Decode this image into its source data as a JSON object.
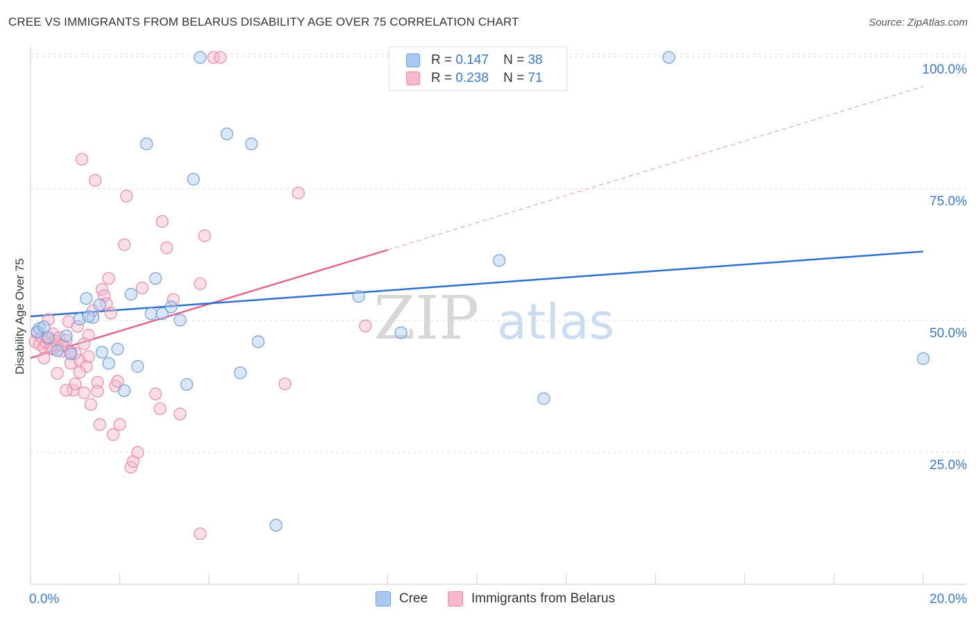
{
  "title": "CREE VS IMMIGRANTS FROM BELARUS DISABILITY AGE OVER 75 CORRELATION CHART",
  "source": "Source: ZipAtlas.com",
  "watermark": {
    "zip": "ZIP",
    "atlas": "atlas"
  },
  "legend": {
    "r_label": "R =",
    "n_label": "N =",
    "rows": [
      {
        "r": "0.147",
        "n": "38"
      },
      {
        "r": "0.238",
        "n": "71"
      }
    ]
  },
  "colors": {
    "blue_fill": "#aac9f0",
    "blue_stroke": "#6f9fd8",
    "blue_line": "#2f6fca",
    "pink_fill": "#f6b8cb",
    "pink_stroke": "#e88aa9",
    "pink_line": "#e06690",
    "tick_label": "#3a78c9",
    "grid": "#dddddd"
  },
  "chart_data": {
    "type": "scatter",
    "title": "CREE VS IMMIGRANTS FROM BELARUS DISABILITY AGE OVER 75 CORRELATION CHART",
    "ylabel": "Disability Age Over 75",
    "xlabel": "",
    "xlim": [
      0,
      20
    ],
    "ylim": [
      0,
      102
    ],
    "x_tick_labels": [
      "0.0%",
      "20.0%"
    ],
    "y_ticks": [
      25,
      50,
      75,
      100
    ],
    "y_tick_labels": [
      "25.0%",
      "50.0%",
      "75.0%",
      "100.0%"
    ],
    "grid": true,
    "legend_position": "top-center",
    "series": [
      {
        "name": "Cree",
        "points": [
          [
            0.2,
            48.5
          ],
          [
            0.4,
            46.8
          ],
          [
            0.6,
            44.3
          ],
          [
            0.9,
            43.7
          ],
          [
            1.1,
            50.3
          ],
          [
            1.25,
            54.2
          ],
          [
            1.4,
            50.6
          ],
          [
            1.55,
            53.0
          ],
          [
            1.6,
            44.0
          ],
          [
            1.75,
            41.9
          ],
          [
            1.95,
            44.6
          ],
          [
            2.1,
            36.7
          ],
          [
            2.25,
            55.0
          ],
          [
            2.4,
            41.3
          ],
          [
            2.6,
            83.5
          ],
          [
            2.7,
            51.3
          ],
          [
            2.8,
            58.0
          ],
          [
            2.95,
            51.3
          ],
          [
            3.15,
            52.6
          ],
          [
            3.35,
            50.1
          ],
          [
            3.5,
            37.9
          ],
          [
            3.65,
            76.8
          ],
          [
            3.8,
            99.9
          ],
          [
            4.4,
            85.4
          ],
          [
            4.7,
            40.1
          ],
          [
            4.95,
            83.5
          ],
          [
            5.1,
            46.0
          ],
          [
            5.5,
            11.2
          ],
          [
            7.35,
            54.6
          ],
          [
            8.3,
            47.7
          ],
          [
            10.5,
            61.4
          ],
          [
            11.5,
            35.2
          ],
          [
            14.3,
            99.9
          ],
          [
            20.0,
            42.8
          ],
          [
            0.15,
            47.9
          ],
          [
            0.3,
            48.8
          ],
          [
            0.8,
            47.1
          ],
          [
            1.3,
            50.8
          ]
        ],
        "trend": {
          "x": [
            0,
            20
          ],
          "y": [
            50.8,
            63.1
          ]
        }
      },
      {
        "name": "Immigrants from Belarus",
        "points": [
          [
            0.1,
            46.0
          ],
          [
            0.15,
            47.6
          ],
          [
            0.2,
            45.5
          ],
          [
            0.25,
            46.9
          ],
          [
            0.3,
            44.9
          ],
          [
            0.35,
            45.9
          ],
          [
            0.4,
            46.5
          ],
          [
            0.45,
            44.7
          ],
          [
            0.5,
            47.5
          ],
          [
            0.55,
            46.1
          ],
          [
            0.6,
            45.4
          ],
          [
            0.65,
            46.8
          ],
          [
            0.7,
            44.2
          ],
          [
            0.75,
            45.2
          ],
          [
            0.8,
            46.3
          ],
          [
            0.85,
            49.8
          ],
          [
            0.9,
            41.9
          ],
          [
            0.95,
            36.8
          ],
          [
            1.0,
            38.0
          ],
          [
            1.05,
            48.9
          ],
          [
            1.1,
            42.5
          ],
          [
            1.15,
            80.6
          ],
          [
            1.2,
            36.3
          ],
          [
            1.25,
            41.3
          ],
          [
            1.3,
            47.2
          ],
          [
            1.35,
            34.1
          ],
          [
            1.4,
            51.9
          ],
          [
            1.45,
            76.6
          ],
          [
            1.5,
            38.3
          ],
          [
            1.55,
            30.3
          ],
          [
            1.6,
            55.9
          ],
          [
            1.65,
            54.7
          ],
          [
            1.7,
            53.2
          ],
          [
            1.75,
            58.0
          ],
          [
            1.8,
            51.4
          ],
          [
            1.85,
            28.4
          ],
          [
            1.9,
            37.6
          ],
          [
            1.95,
            38.5
          ],
          [
            2.0,
            30.3
          ],
          [
            2.1,
            64.4
          ],
          [
            2.15,
            73.6
          ],
          [
            2.25,
            22.2
          ],
          [
            2.3,
            23.3
          ],
          [
            2.4,
            25.0
          ],
          [
            2.5,
            56.2
          ],
          [
            2.8,
            36.1
          ],
          [
            2.9,
            33.3
          ],
          [
            2.95,
            68.8
          ],
          [
            3.05,
            63.8
          ],
          [
            3.2,
            54.0
          ],
          [
            3.35,
            32.3
          ],
          [
            3.8,
            57.0
          ],
          [
            3.9,
            66.1
          ],
          [
            3.8,
            9.6
          ],
          [
            4.1,
            99.9
          ],
          [
            4.25,
            99.9
          ],
          [
            6.0,
            74.2
          ],
          [
            5.7,
            38.0
          ],
          [
            7.5,
            49.0
          ],
          [
            0.6,
            40.0
          ],
          [
            0.8,
            36.8
          ],
          [
            1.0,
            43.8
          ],
          [
            0.4,
            50.2
          ],
          [
            0.3,
            42.9
          ],
          [
            0.5,
            44.6
          ],
          [
            1.2,
            45.6
          ],
          [
            0.9,
            44.0
          ],
          [
            1.1,
            40.2
          ],
          [
            0.7,
            45.3
          ],
          [
            1.3,
            43.2
          ],
          [
            1.5,
            36.6
          ]
        ],
        "trend": {
          "x": [
            0,
            8.0
          ],
          "y": [
            42.9,
            63.4
          ]
        },
        "trend_extension": {
          "x": [
            8.0,
            20
          ],
          "y": [
            63.4,
            94.4
          ]
        }
      }
    ]
  }
}
